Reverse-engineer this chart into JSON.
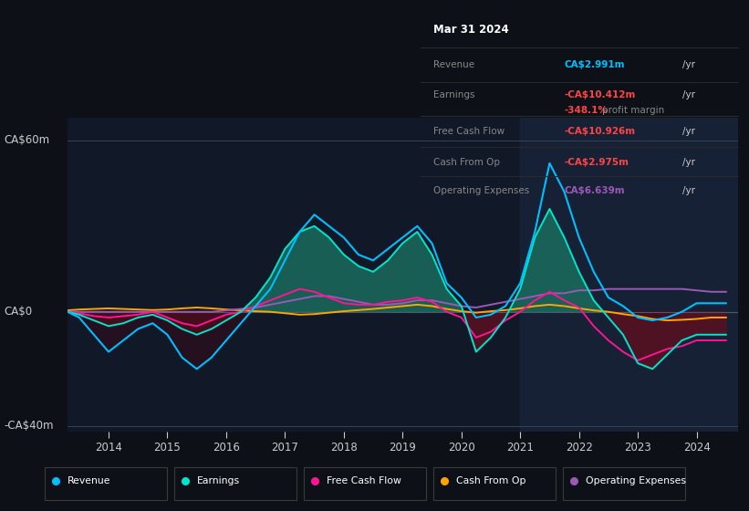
{
  "bg_color": "#0d1117",
  "chart_bg_color": "#111827",
  "title_text": "Mar 31 2024",
  "ylabel_top": "CA$60m",
  "ylabel_zero": "CA$0",
  "ylabel_bot": "-CA$40m",
  "ylim": [
    -42,
    68
  ],
  "xlim_start": 2013.3,
  "xlim_end": 2024.7,
  "xticks": [
    2014,
    2015,
    2016,
    2017,
    2018,
    2019,
    2020,
    2021,
    2022,
    2023,
    2024
  ],
  "colors": {
    "revenue": "#00bfff",
    "earnings": "#00e5cc",
    "free_cash_flow": "#ff1493",
    "cash_from_op": "#ffa500",
    "operating_expenses": "#9b59b6"
  },
  "info_box": {
    "date": "Mar 31 2024",
    "revenue_val": "CA$2.991m",
    "revenue_color": "#00bfff",
    "earnings_val": "-CA$10.412m",
    "earnings_color": "#ff4444",
    "margin_val": "-348.1%",
    "margin_color": "#ff4444",
    "fcf_val": "-CA$10.926m",
    "fcf_color": "#ff4444",
    "cashop_val": "-CA$2.975m",
    "cashop_color": "#ff4444",
    "opex_val": "CA$6.639m",
    "opex_color": "#9b59b6"
  },
  "revenue": {
    "x": [
      2013.3,
      2013.5,
      2013.75,
      2014.0,
      2014.25,
      2014.5,
      2014.75,
      2015.0,
      2015.25,
      2015.5,
      2015.75,
      2016.0,
      2016.25,
      2016.5,
      2016.75,
      2017.0,
      2017.25,
      2017.5,
      2017.75,
      2018.0,
      2018.25,
      2018.5,
      2018.75,
      2019.0,
      2019.25,
      2019.5,
      2019.75,
      2020.0,
      2020.25,
      2020.5,
      2020.75,
      2021.0,
      2021.25,
      2021.5,
      2021.75,
      2022.0,
      2022.25,
      2022.5,
      2022.75,
      2023.0,
      2023.25,
      2023.5,
      2023.75,
      2024.0,
      2024.25,
      2024.5
    ],
    "y": [
      0,
      -2,
      -8,
      -14,
      -10,
      -6,
      -4,
      -8,
      -16,
      -20,
      -16,
      -10,
      -4,
      2,
      8,
      18,
      28,
      34,
      30,
      26,
      20,
      18,
      22,
      26,
      30,
      24,
      10,
      5,
      -2,
      -1,
      2,
      10,
      28,
      52,
      42,
      26,
      14,
      5,
      2,
      -2,
      -3,
      -2,
      0,
      3,
      3,
      3
    ]
  },
  "earnings": {
    "x": [
      2013.3,
      2013.5,
      2013.75,
      2014.0,
      2014.25,
      2014.5,
      2014.75,
      2015.0,
      2015.25,
      2015.5,
      2015.75,
      2016.0,
      2016.25,
      2016.5,
      2016.75,
      2017.0,
      2017.25,
      2017.5,
      2017.75,
      2018.0,
      2018.25,
      2018.5,
      2018.75,
      2019.0,
      2019.25,
      2019.5,
      2019.75,
      2020.0,
      2020.25,
      2020.5,
      2020.75,
      2021.0,
      2021.25,
      2021.5,
      2021.75,
      2022.0,
      2022.25,
      2022.5,
      2022.75,
      2023.0,
      2023.25,
      2023.5,
      2023.75,
      2024.0,
      2024.25,
      2024.5
    ],
    "y": [
      0,
      -1,
      -3,
      -5,
      -4,
      -2,
      -1,
      -3,
      -6,
      -8,
      -6,
      -3,
      0,
      5,
      12,
      22,
      28,
      30,
      26,
      20,
      16,
      14,
      18,
      24,
      28,
      20,
      8,
      2,
      -14,
      -9,
      -2,
      8,
      26,
      36,
      26,
      14,
      4,
      -2,
      -8,
      -18,
      -20,
      -15,
      -10,
      -8,
      -8,
      -8
    ]
  },
  "free_cash_flow": {
    "x": [
      2013.3,
      2013.5,
      2013.75,
      2014.0,
      2014.25,
      2014.5,
      2014.75,
      2015.0,
      2015.25,
      2015.5,
      2015.75,
      2016.0,
      2016.25,
      2016.5,
      2016.75,
      2017.0,
      2017.25,
      2017.5,
      2017.75,
      2018.0,
      2018.25,
      2018.5,
      2018.75,
      2019.0,
      2019.25,
      2019.5,
      2019.75,
      2020.0,
      2020.25,
      2020.5,
      2020.75,
      2021.0,
      2021.25,
      2021.5,
      2021.75,
      2022.0,
      2022.25,
      2022.5,
      2022.75,
      2023.0,
      2023.25,
      2023.5,
      2023.75,
      2024.0,
      2024.25,
      2024.5
    ],
    "y": [
      0,
      -0.5,
      -1.5,
      -2,
      -1.5,
      -1,
      0,
      -2,
      -4,
      -5,
      -3,
      -1,
      0,
      2,
      4,
      6,
      8,
      7,
      5,
      3,
      2.5,
      2.5,
      3.5,
      4,
      5,
      3.5,
      0,
      -2,
      -9,
      -7,
      -3,
      0,
      4,
      7,
      4,
      1.5,
      -5,
      -10,
      -14,
      -17,
      -15,
      -13,
      -12,
      -10,
      -10,
      -10
    ]
  },
  "cash_from_op": {
    "x": [
      2013.3,
      2013.5,
      2013.75,
      2014.0,
      2014.25,
      2014.5,
      2014.75,
      2015.0,
      2015.25,
      2015.5,
      2015.75,
      2016.0,
      2016.25,
      2016.5,
      2016.75,
      2017.0,
      2017.25,
      2017.5,
      2017.75,
      2018.0,
      2018.25,
      2018.5,
      2018.75,
      2019.0,
      2019.25,
      2019.5,
      2019.75,
      2020.0,
      2020.25,
      2020.5,
      2020.75,
      2021.0,
      2021.25,
      2021.5,
      2021.75,
      2022.0,
      2022.25,
      2022.5,
      2022.75,
      2023.0,
      2023.25,
      2023.5,
      2023.75,
      2024.0,
      2024.25,
      2024.5
    ],
    "y": [
      0.5,
      0.8,
      1,
      1.2,
      1,
      0.8,
      0.6,
      0.8,
      1.2,
      1.5,
      1.2,
      0.8,
      0.5,
      0.2,
      0,
      -0.5,
      -1,
      -0.8,
      -0.3,
      0.2,
      0.6,
      1,
      1.5,
      2,
      2.5,
      2,
      1,
      0.2,
      -0.3,
      0.2,
      0.6,
      1.2,
      2,
      2.5,
      2,
      1.2,
      0.5,
      0,
      -0.8,
      -1.5,
      -2.5,
      -3,
      -2.8,
      -2.5,
      -2,
      -2
    ]
  },
  "operating_expenses": {
    "x": [
      2013.3,
      2013.5,
      2013.75,
      2014.0,
      2014.25,
      2014.5,
      2014.75,
      2015.0,
      2015.25,
      2015.5,
      2015.75,
      2016.0,
      2016.25,
      2016.5,
      2016.75,
      2017.0,
      2017.25,
      2017.5,
      2017.75,
      2018.0,
      2018.25,
      2018.5,
      2018.75,
      2019.0,
      2019.25,
      2019.5,
      2019.75,
      2020.0,
      2020.25,
      2020.5,
      2020.75,
      2021.0,
      2021.25,
      2021.5,
      2021.75,
      2022.0,
      2022.25,
      2022.5,
      2022.75,
      2023.0,
      2023.25,
      2023.5,
      2023.75,
      2024.0,
      2024.25,
      2024.5
    ],
    "y": [
      0,
      0,
      0,
      0,
      0,
      0,
      0,
      0,
      0,
      0,
      0,
      0.5,
      1,
      1.5,
      2.5,
      3.5,
      4.5,
      5.5,
      5.5,
      4.5,
      3.5,
      2.5,
      2.5,
      3,
      4,
      4,
      3,
      2,
      1.5,
      2.5,
      3.5,
      4.5,
      5.5,
      6.5,
      6.5,
      7.5,
      7.5,
      8,
      8,
      8,
      8,
      8,
      8,
      7.5,
      7,
      7
    ]
  }
}
